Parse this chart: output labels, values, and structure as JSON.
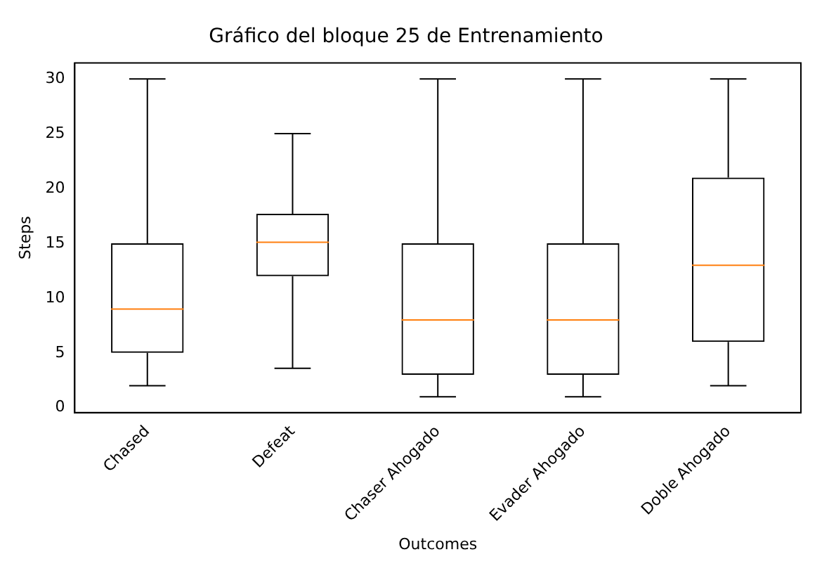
{
  "chart_data": {
    "type": "box",
    "title": "Gráfico del bloque 25 de Entrenamiento",
    "xlabel": "Outcomes",
    "ylabel": "Steps",
    "categories": [
      "Chased",
      "Defeat",
      "Chaser Ahogado",
      "Evader Ahogado",
      "Doble Ahogado"
    ],
    "boxes": [
      {
        "low": 2,
        "q1": 5,
        "median": 9,
        "q3": 15,
        "high": 30
      },
      {
        "low": 3.6,
        "q1": 12,
        "median": 15.1,
        "q3": 17.7,
        "high": 25
      },
      {
        "low": 1,
        "q1": 3,
        "median": 8,
        "q3": 15,
        "high": 30
      },
      {
        "low": 1,
        "q1": 3,
        "median": 8,
        "q3": 15,
        "high": 30
      },
      {
        "low": 2,
        "q1": 6,
        "median": 13,
        "q3": 21,
        "high": 30
      }
    ],
    "color": "#000000",
    "ylim": [
      -0.45,
      31.45
    ],
    "yticks": [
      0,
      5,
      10,
      15,
      20,
      25,
      30
    ],
    "grid": false,
    "legend": false
  }
}
